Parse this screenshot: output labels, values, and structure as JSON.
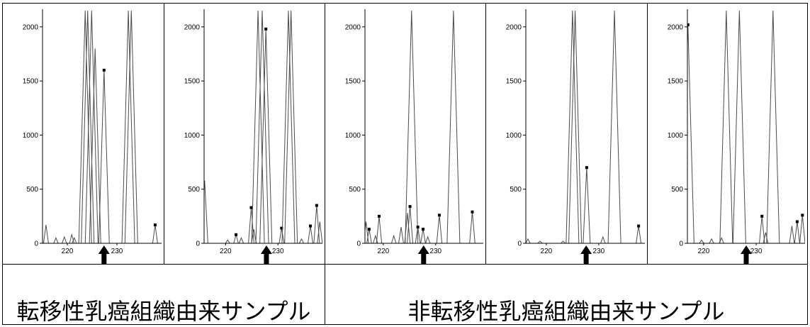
{
  "labels": {
    "metastatic": "転移性乳癌組織由来サンプル",
    "non_metastatic": "非転移性乳癌組織由来サンプル"
  },
  "colors": {
    "trace": "#4a4a4a",
    "marker": "#000000",
    "arrow": "#000000",
    "axis": "#000000"
  },
  "chart_data": [
    {
      "type": "line",
      "xlim": [
        215.0,
        239.0
      ],
      "ylim": [
        0,
        2150
      ],
      "yticks": [
        0,
        500,
        1000,
        1500,
        2000
      ],
      "xticks": [
        220,
        230
      ],
      "arrow_x": 227.4,
      "peaks": [
        [
          215.7,
          170,
          0
        ],
        [
          217.7,
          50,
          0
        ],
        [
          219.4,
          60,
          0
        ],
        [
          220.9,
          80,
          0
        ],
        [
          221.4,
          50,
          0
        ],
        [
          223.6,
          2150,
          0
        ],
        [
          224.1,
          2150,
          0
        ],
        [
          224.9,
          2150,
          0
        ],
        [
          225.6,
          1800,
          0
        ],
        [
          227.4,
          1600,
          1
        ],
        [
          232.3,
          2150,
          0
        ],
        [
          232.9,
          2150,
          0
        ],
        [
          237.7,
          170,
          1
        ]
      ]
    },
    {
      "type": "line",
      "xlim": [
        215.9,
        238.5
      ],
      "ylim": [
        0,
        2150
      ],
      "yticks": [
        0,
        500,
        1000,
        1500,
        2000
      ],
      "xticks": [
        220,
        230
      ],
      "arrow_x": 227.8,
      "peaks": [
        [
          216.0,
          580,
          0
        ],
        [
          220.4,
          30,
          0
        ],
        [
          222.0,
          80,
          1
        ],
        [
          223.0,
          50,
          0
        ],
        [
          224.9,
          330,
          1
        ],
        [
          225.4,
          130,
          0
        ],
        [
          226.2,
          2150,
          0
        ],
        [
          227.0,
          2150,
          0
        ],
        [
          227.7,
          1980,
          1
        ],
        [
          230.7,
          140,
          1
        ],
        [
          232.0,
          2150,
          0
        ],
        [
          232.5,
          2150,
          0
        ],
        [
          234.5,
          40,
          0
        ],
        [
          236.2,
          160,
          1
        ],
        [
          237.4,
          350,
          1
        ],
        [
          238.0,
          200,
          0
        ]
      ]
    },
    {
      "type": "line",
      "xlim": [
        216.5,
        239.1
      ],
      "ylim": [
        0,
        2150
      ],
      "yticks": [
        0,
        500,
        1000,
        1500,
        2000
      ],
      "xticks": [
        220,
        230
      ],
      "arrow_x": 227.7,
      "peaks": [
        [
          216.7,
          200,
          0
        ],
        [
          217.3,
          130,
          1
        ],
        [
          218.5,
          70,
          0
        ],
        [
          219.2,
          250,
          1
        ],
        [
          222.0,
          70,
          0
        ],
        [
          223.4,
          150,
          0
        ],
        [
          224.6,
          280,
          0
        ],
        [
          225.1,
          340,
          1
        ],
        [
          225.4,
          2150,
          0
        ],
        [
          226.6,
          150,
          1
        ],
        [
          227.6,
          130,
          1
        ],
        [
          228.5,
          60,
          0
        ],
        [
          230.7,
          260,
          1
        ],
        [
          233.4,
          2150,
          0
        ],
        [
          237.0,
          290,
          1
        ]
      ]
    },
    {
      "type": "line",
      "xlim": [
        216.1,
        238.8
      ],
      "ylim": [
        0,
        2150
      ],
      "yticks": [
        0,
        500,
        1000,
        1500,
        2000
      ],
      "xticks": [
        220,
        230
      ],
      "arrow_x": 227.6,
      "peaks": [
        [
          216.5,
          40,
          0
        ],
        [
          218.8,
          20,
          0
        ],
        [
          223.2,
          20,
          0
        ],
        [
          225.0,
          2150,
          0
        ],
        [
          225.5,
          2150,
          0
        ],
        [
          227.7,
          700,
          1
        ],
        [
          230.8,
          60,
          0
        ],
        [
          233.0,
          2150,
          0
        ],
        [
          237.6,
          160,
          1
        ]
      ]
    },
    {
      "type": "line",
      "xlim": [
        216.9,
        239.3
      ],
      "ylim": [
        0,
        2150
      ],
      "yticks": [
        0,
        500,
        1000,
        1500,
        2000
      ],
      "xticks": [
        220,
        230
      ],
      "arrow_x": 228.1,
      "peaks": [
        [
          217.0,
          2020,
          1
        ],
        [
          219.6,
          30,
          0
        ],
        [
          221.5,
          40,
          0
        ],
        [
          223.4,
          50,
          0
        ],
        [
          224.3,
          2150,
          0
        ],
        [
          226.8,
          2150,
          0
        ],
        [
          231.1,
          250,
          1
        ],
        [
          231.8,
          100,
          0
        ],
        [
          233.2,
          2150,
          0
        ],
        [
          236.8,
          160,
          0
        ],
        [
          237.8,
          200,
          1
        ],
        [
          238.8,
          260,
          1
        ]
      ]
    }
  ]
}
